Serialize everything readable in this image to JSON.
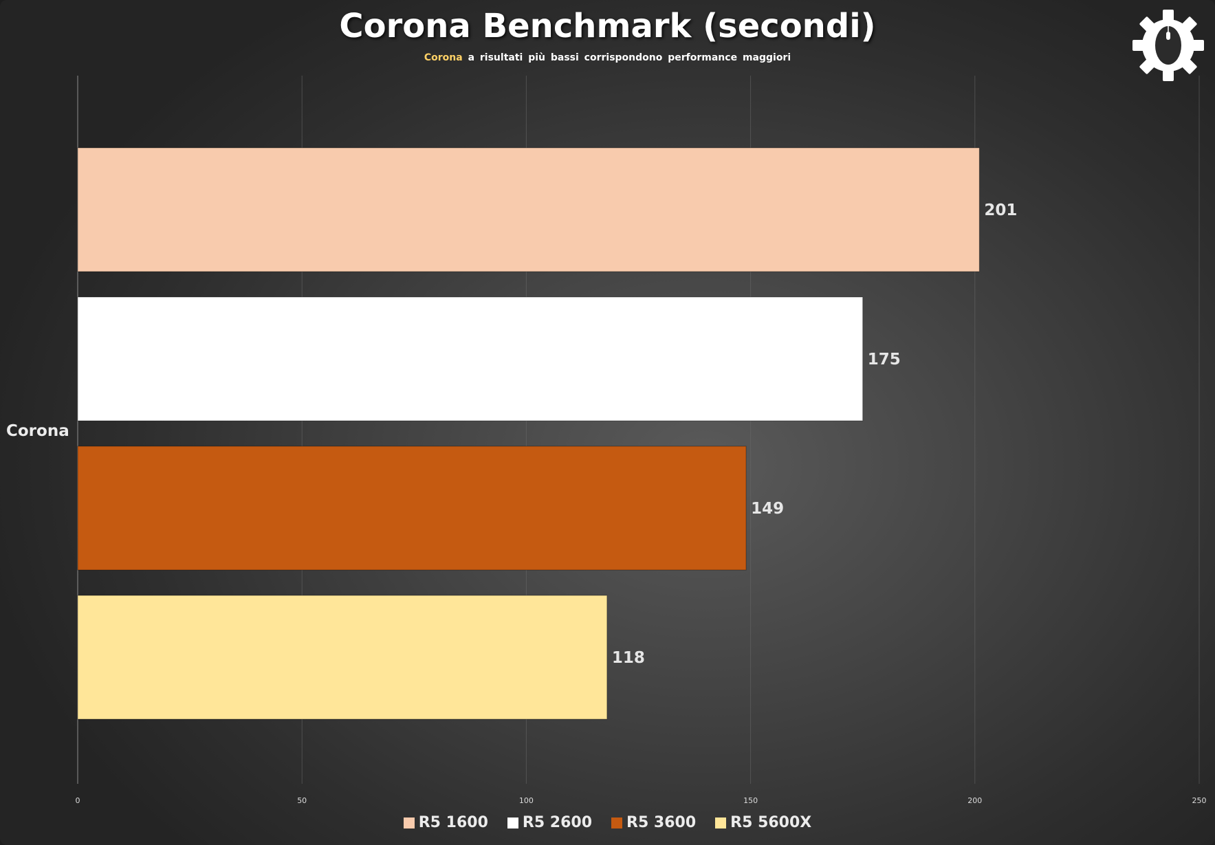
{
  "header": {
    "title": "Corona Benchmark (secondi)",
    "subtitle_highlight": "Corona",
    "subtitle_rest": "a risultati più bassi corrispondono performance maggiori"
  },
  "logo": {
    "icon": "gear-mouse-icon"
  },
  "colors": {
    "background": "#3a3a3a",
    "accent": "#ffd166"
  },
  "chart_data": {
    "type": "bar",
    "orientation": "horizontal",
    "title": "Corona Benchmark (secondi)",
    "subtitle": "Corona a risultati più bassi corrispondono performance maggiori",
    "categories": [
      "Corona"
    ],
    "series": [
      {
        "name": "R5 1600",
        "values": [
          201
        ],
        "color": "#f8cbad"
      },
      {
        "name": "R5 2600",
        "values": [
          175
        ],
        "color": "#ffffff"
      },
      {
        "name": "R5 3600",
        "values": [
          149
        ],
        "color": "#c55a11"
      },
      {
        "name": "R5 5600X",
        "values": [
          118
        ],
        "color": "#ffe699"
      }
    ],
    "xlim": [
      0,
      250
    ],
    "xticks": [
      0,
      50,
      100,
      150,
      200,
      250
    ],
    "xlabel": "",
    "ylabel": "",
    "grid": true,
    "legend": "bottom"
  }
}
